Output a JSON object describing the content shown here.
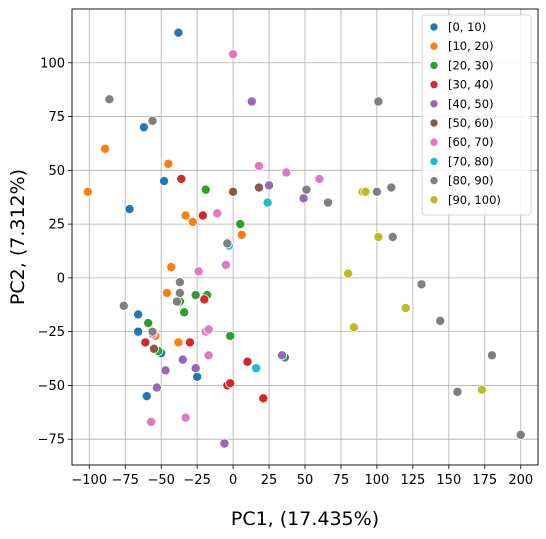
{
  "chart_data": {
    "type": "scatter",
    "xlabel": "PC1, (17.435%)",
    "ylabel": "PC2, (7.312%)",
    "xlim": [
      -112,
      212
    ],
    "ylim": [
      -87,
      125
    ],
    "xticks": [
      -100,
      -75,
      -50,
      -25,
      0,
      25,
      50,
      75,
      100,
      125,
      150,
      175,
      200
    ],
    "yticks": [
      -75,
      -50,
      -25,
      0,
      25,
      50,
      75,
      100
    ],
    "grid": true,
    "legend_position": "top-right",
    "series": [
      {
        "name": "[0, 10)",
        "color": "#1f77b4",
        "points": [
          [
            -38,
            114
          ],
          [
            -62,
            70
          ],
          [
            -48,
            45
          ],
          [
            -72,
            32
          ],
          [
            -66,
            -17
          ],
          [
            -66,
            -25
          ],
          [
            -50,
            -35
          ],
          [
            -60,
            -55
          ],
          [
            -25,
            -46
          ]
        ]
      },
      {
        "name": "[10, 20)",
        "color": "#ff7f0e",
        "points": [
          [
            -89,
            60
          ],
          [
            -45,
            53
          ],
          [
            -101,
            40
          ],
          [
            -33,
            29
          ],
          [
            -28,
            26
          ],
          [
            6,
            20
          ],
          [
            -43,
            5
          ],
          [
            -46,
            -7
          ],
          [
            -54,
            -27
          ],
          [
            -38,
            -30
          ]
        ]
      },
      {
        "name": "[20, 30)",
        "color": "#2ca02c",
        "points": [
          [
            -19,
            41
          ],
          [
            5,
            25
          ],
          [
            -37,
            -11
          ],
          [
            -34,
            -16
          ],
          [
            -26,
            -8
          ],
          [
            -18,
            -8
          ],
          [
            -59,
            -21
          ],
          [
            -2,
            -27
          ],
          [
            -52,
            -34
          ],
          [
            36,
            -37
          ]
        ]
      },
      {
        "name": "[30, 40)",
        "color": "#d62728",
        "points": [
          [
            -36,
            46
          ],
          [
            -21,
            29
          ],
          [
            -20,
            -10
          ],
          [
            -61,
            -30
          ],
          [
            -30,
            -30
          ],
          [
            -4,
            -50
          ],
          [
            -2,
            -49
          ],
          [
            10,
            -39
          ],
          [
            21,
            -56
          ]
        ]
      },
      {
        "name": "[40, 50)",
        "color": "#9467bd",
        "points": [
          [
            13,
            82
          ],
          [
            25,
            43
          ],
          [
            49,
            37
          ],
          [
            -35,
            -38
          ],
          [
            -47,
            -43
          ],
          [
            -26,
            -42
          ],
          [
            -53,
            -51
          ],
          [
            -6,
            -77
          ],
          [
            34,
            -36
          ]
        ]
      },
      {
        "name": "[50, 60)",
        "color": "#8c564b",
        "points": [
          [
            0,
            40
          ],
          [
            18,
            42
          ],
          [
            -55,
            -33
          ]
        ]
      },
      {
        "name": "[60, 70)",
        "color": "#e377c2",
        "points": [
          [
            0,
            104
          ],
          [
            18,
            52
          ],
          [
            37,
            49
          ],
          [
            60,
            46
          ],
          [
            -11,
            30
          ],
          [
            -5,
            6
          ],
          [
            -24,
            3
          ],
          [
            -19,
            -25
          ],
          [
            -17,
            -24
          ],
          [
            -17,
            -36
          ],
          [
            -33,
            -65
          ],
          [
            -57,
            -67
          ],
          [
            -56,
            -26
          ]
        ]
      },
      {
        "name": "[70, 80)",
        "color": "#17becf",
        "points": [
          [
            24,
            35
          ],
          [
            -3,
            15
          ],
          [
            16,
            -42
          ]
        ]
      },
      {
        "name": "[80, 90)",
        "color": "#7f7f7f",
        "points": [
          [
            -86,
            83
          ],
          [
            -56,
            73
          ],
          [
            101,
            82
          ],
          [
            51,
            41
          ],
          [
            66,
            35
          ],
          [
            100,
            40
          ],
          [
            110,
            42
          ],
          [
            111,
            19
          ],
          [
            -4,
            16
          ],
          [
            -37,
            -2
          ],
          [
            -37,
            -7
          ],
          [
            -39,
            -11
          ],
          [
            -76,
            -13
          ],
          [
            -56,
            -25
          ],
          [
            131,
            -3
          ],
          [
            144,
            -20
          ],
          [
            180,
            -36
          ],
          [
            156,
            -53
          ],
          [
            200,
            -73
          ]
        ]
      },
      {
        "name": "[90, 100)",
        "color": "#bcbd22",
        "points": [
          [
            90,
            40
          ],
          [
            92,
            40
          ],
          [
            101,
            19
          ],
          [
            80,
            2
          ],
          [
            84,
            -23
          ],
          [
            120,
            -14
          ],
          [
            173,
            -52
          ]
        ]
      }
    ]
  }
}
